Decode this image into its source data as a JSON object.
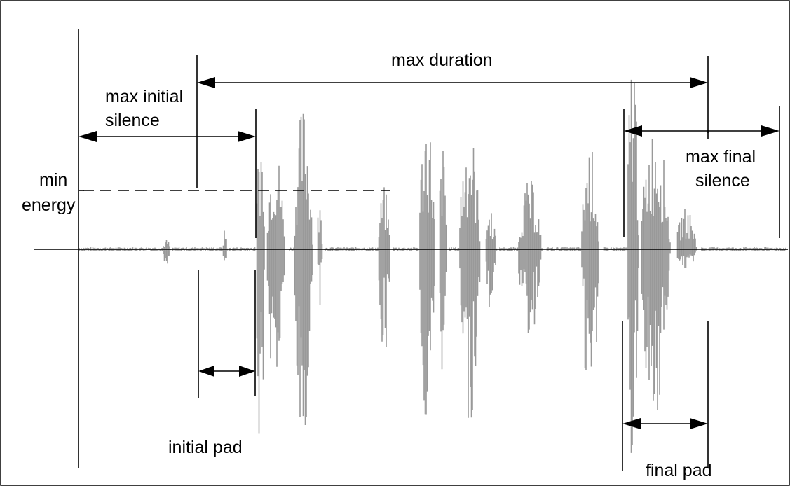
{
  "labels": {
    "max_duration": "max duration",
    "max_initial_silence_line1": "max initial",
    "max_initial_silence_line2": "silence",
    "min_energy_line1": "min",
    "min_energy_line2": "energy",
    "max_final_silence_line1": "max final",
    "max_final_silence_line2": "silence",
    "initial_pad": "initial pad",
    "final_pad": "final pad"
  },
  "colors": {
    "waveform": "#999999",
    "annotation": "#000000",
    "background": "#ffffff",
    "frame": "#000000"
  }
}
